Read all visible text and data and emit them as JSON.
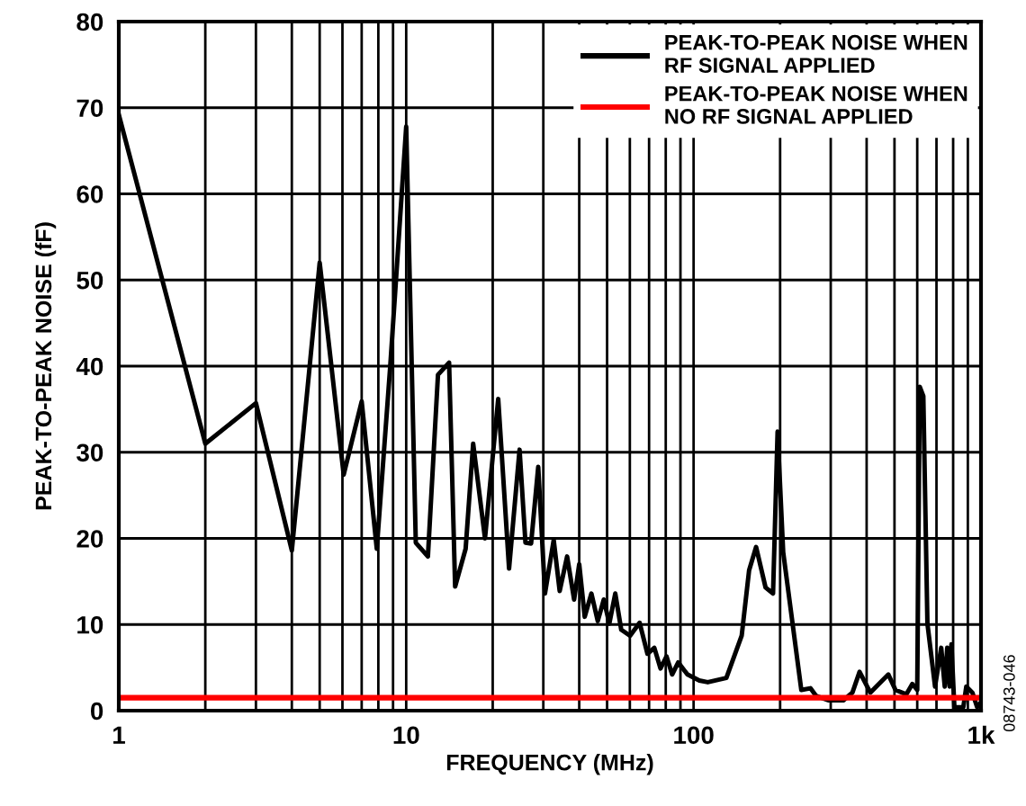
{
  "chart_data": {
    "type": "line",
    "xlabel": "FREQUENCY (MHz)",
    "ylabel": "PEAK-TO-PEAK NOISE (fF)",
    "log": "x",
    "grid": true,
    "legend": "top right",
    "marker": "none",
    "line_style": "solid",
    "xlim": [
      1,
      1000
    ],
    "ylim": [
      0,
      80
    ],
    "xticks": [
      {
        "value": 1,
        "label": "1"
      },
      {
        "value": 10,
        "label": "10"
      },
      {
        "value": 100,
        "label": "100"
      },
      {
        "value": 1000,
        "label": "1k"
      }
    ],
    "yticks": [
      0,
      10,
      20,
      30,
      40,
      50,
      60,
      70,
      80
    ],
    "annotations": [
      "08743-046"
    ],
    "series": [
      {
        "name": "PEAK-TO-PEAK NOISE WHEN\nRF SIGNAL APPLIED",
        "color": "#000000",
        "x": [
          1,
          2,
          3,
          4,
          5,
          6.06,
          7,
          7.9,
          8.8,
          10,
          10.8,
          11.9,
          12.9,
          14.1,
          14.8,
          16.1,
          17.1,
          18.8,
          20.9,
          22.8,
          24.8,
          26,
          27.2,
          28.8,
          30.4,
          32.6,
          34.2,
          36.3,
          38.4,
          40,
          41.8,
          44.1,
          46.4,
          48.7,
          50.9,
          53.4,
          56,
          60.1,
          64.9,
          69.1,
          73,
          76.7,
          80.5,
          84.2,
          88.4,
          95.2,
          104.7,
          112,
          130,
          147,
          156,
          165,
          178,
          189,
          196,
          205,
          221,
          237,
          255,
          267,
          294,
          332,
          357,
          378,
          412,
          476,
          504,
          550,
          577,
          600,
          612,
          630,
          651,
          692,
          727,
          748,
          763,
          778,
          789,
          808,
          868,
          889,
          933,
          970,
          1000
        ],
        "values": [
          69.2,
          31,
          35.7,
          18.6,
          52,
          27.4,
          35.9,
          18.8,
          40,
          67.8,
          19.5,
          17.9,
          39,
          40.4,
          14.4,
          18.8,
          31,
          20,
          36.2,
          16.5,
          30.3,
          19.5,
          19.4,
          28.3,
          13.6,
          19.8,
          13.9,
          17.9,
          12.9,
          17,
          10.9,
          13.6,
          10.4,
          12.9,
          10.1,
          13.6,
          9.4,
          8.7,
          10.2,
          6.6,
          7.3,
          4.9,
          6.3,
          4.2,
          5.6,
          4.2,
          3.5,
          3.3,
          3.8,
          8.7,
          16.3,
          19,
          14.3,
          13.6,
          32.4,
          18.4,
          10.1,
          2.4,
          2.6,
          1.7,
          1.2,
          1.2,
          2.1,
          4.5,
          2.1,
          4.2,
          2.4,
          1.9,
          3.1,
          2.4,
          37.6,
          36.5,
          10.1,
          2.8,
          7.3,
          2.8,
          7.3,
          2.8,
          7.7,
          0.4,
          0.4,
          2.8,
          2.1,
          0.4,
          1
        ]
      },
      {
        "name": "PEAK-TO-PEAK NOISE WHEN\nNO RF SIGNAL APPLIED",
        "color": "#ff0000",
        "x": [
          1,
          1000
        ],
        "values": [
          1.5,
          1.5
        ]
      }
    ]
  }
}
